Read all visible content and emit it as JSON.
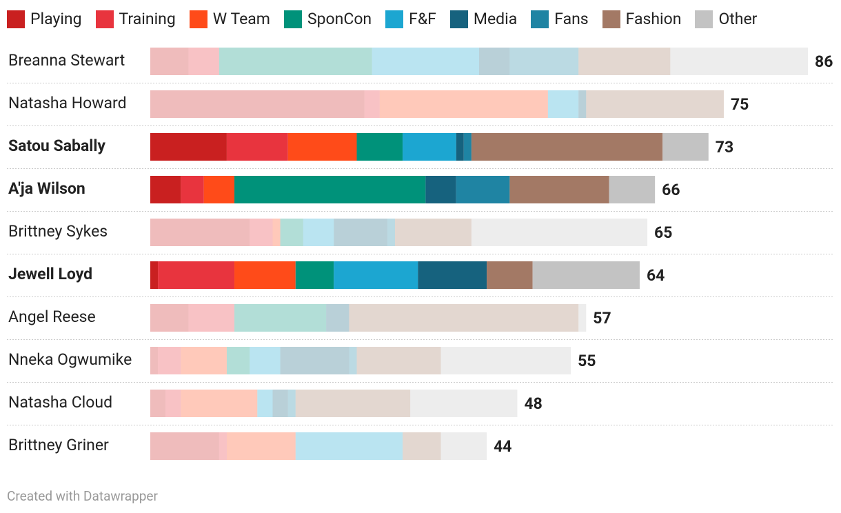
{
  "chart_data": {
    "type": "stacked-bar-horizontal",
    "categories": [
      "Breanna Stewart",
      "Natasha Howard",
      "Satou Sabally",
      "A'ja Wilson",
      "Brittney Sykes",
      "Jewell Loyd",
      "Angel Reese",
      "Nneka Ogwumike",
      "Natasha Cloud",
      "Brittney Griner"
    ],
    "highlighted": [
      false,
      false,
      true,
      true,
      false,
      true,
      false,
      false,
      false,
      false
    ],
    "series": [
      {
        "name": "Playing",
        "color": "#c92020",
        "values": [
          5,
          28,
          10,
          4,
          13,
          1,
          5,
          1,
          2,
          9
        ]
      },
      {
        "name": "Training",
        "color": "#e8343e",
        "values": [
          4,
          2,
          8,
          3,
          3,
          10,
          6,
          3,
          2,
          1
        ]
      },
      {
        "name": "W Team",
        "color": "#ff4b19",
        "values": [
          0,
          22,
          9,
          4,
          1,
          8,
          0,
          6,
          10,
          9
        ]
      },
      {
        "name": "SponCon",
        "color": "#00927a",
        "values": [
          20,
          0,
          6,
          25,
          3,
          5,
          12,
          3,
          0,
          0
        ]
      },
      {
        "name": "F&F",
        "color": "#1ca6d1",
        "values": [
          14,
          4,
          7,
          0,
          4,
          11,
          0,
          4,
          2,
          14
        ]
      },
      {
        "name": "Media",
        "color": "#16627e",
        "values": [
          4,
          1,
          1,
          4,
          7,
          9,
          3,
          9,
          2,
          0
        ]
      },
      {
        "name": "Fans",
        "color": "#1f84a3",
        "values": [
          9,
          0,
          1,
          7,
          1,
          0,
          0,
          1,
          1,
          0
        ]
      },
      {
        "name": "Fashion",
        "color": "#a37965",
        "values": [
          12,
          18,
          25,
          13,
          10,
          6,
          30,
          11,
          15,
          5
        ]
      },
      {
        "name": "Other",
        "color": "#c3c3c3",
        "values": [
          18,
          0,
          6,
          6,
          23,
          14,
          1,
          17,
          14,
          6
        ]
      }
    ],
    "totals": [
      86,
      75,
      73,
      66,
      65,
      64,
      57,
      55,
      48,
      44
    ],
    "xlim": [
      0,
      86
    ],
    "footer": "Created with Datawrapper"
  }
}
